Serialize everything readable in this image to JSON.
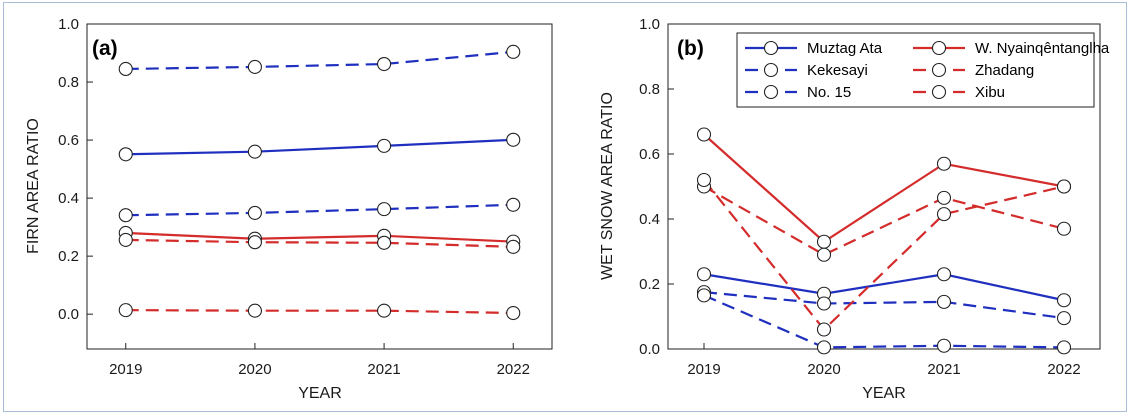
{
  "chart_data": [
    {
      "type": "line",
      "panel_label": "(a)",
      "xlabel": "YEAR",
      "ylabel": "FIRN AREA RATIO",
      "x": [
        2019,
        2020,
        2021,
        2022
      ],
      "xticks": [
        "2019",
        "2020",
        "2021",
        "2022"
      ],
      "ylim": [
        -0.12,
        1.0
      ],
      "yticks": [
        "0.0",
        "0.2",
        "0.4",
        "0.6",
        "0.8",
        "1.0"
      ],
      "grid": false,
      "legend": "none",
      "series": [
        {
          "values": [
            0.845,
            0.852,
            0.862,
            0.904
          ],
          "color": "#1f2fbf",
          "dash": "dashed"
        },
        {
          "values": [
            0.551,
            0.56,
            0.58,
            0.601
          ],
          "color": "#1f2fbf",
          "dash": "solid"
        },
        {
          "values": [
            0.341,
            0.349,
            0.362,
            0.377
          ],
          "color": "#1f2fbf",
          "dash": "dashed"
        },
        {
          "values": [
            0.28,
            0.26,
            0.27,
            0.25
          ],
          "color": "#d42b2b",
          "dash": "solid"
        },
        {
          "values": [
            0.256,
            0.248,
            0.246,
            0.232
          ],
          "color": "#d42b2b",
          "dash": "dashed"
        },
        {
          "values": [
            0.014,
            0.012,
            0.012,
            0.004
          ],
          "color": "#d42b2b",
          "dash": "dashed"
        }
      ]
    },
    {
      "type": "line",
      "panel_label": "(b)",
      "xlabel": "YEAR",
      "ylabel": "WET SNOW AREA RATIO",
      "x": [
        2019,
        2020,
        2021,
        2022
      ],
      "xticks": [
        "2019",
        "2020",
        "2021",
        "2022"
      ],
      "ylim": [
        0.0,
        1.0
      ],
      "yticks": [
        "0.0",
        "0.2",
        "0.4",
        "0.6",
        "0.8",
        "1.0"
      ],
      "grid": false,
      "legend": "top-right",
      "series": [
        {
          "name": "Muztag Ata",
          "values": [
            0.23,
            0.17,
            0.23,
            0.15
          ],
          "color": "#1f2fbf",
          "dash": "solid"
        },
        {
          "name": "Kekesayi",
          "values": [
            0.175,
            0.14,
            0.145,
            0.095
          ],
          "color": "#1f2fbf",
          "dash": "dashed"
        },
        {
          "name": "No. 15",
          "values": [
            0.165,
            0.005,
            0.01,
            0.005
          ],
          "color": "#1f2fbf",
          "dash": "dashed"
        },
        {
          "name": "W. Nyainqêntanglha",
          "values": [
            0.66,
            0.33,
            0.57,
            0.5
          ],
          "color": "#d42b2b",
          "dash": "solid"
        },
        {
          "name": "Zhadang",
          "values": [
            0.5,
            0.29,
            0.465,
            0.37
          ],
          "color": "#d42b2b",
          "dash": "dashed"
        },
        {
          "name": "Xibu",
          "values": [
            0.52,
            0.06,
            0.415,
            0.5
          ],
          "color": "#d42b2b",
          "dash": "dashed"
        }
      ]
    }
  ]
}
